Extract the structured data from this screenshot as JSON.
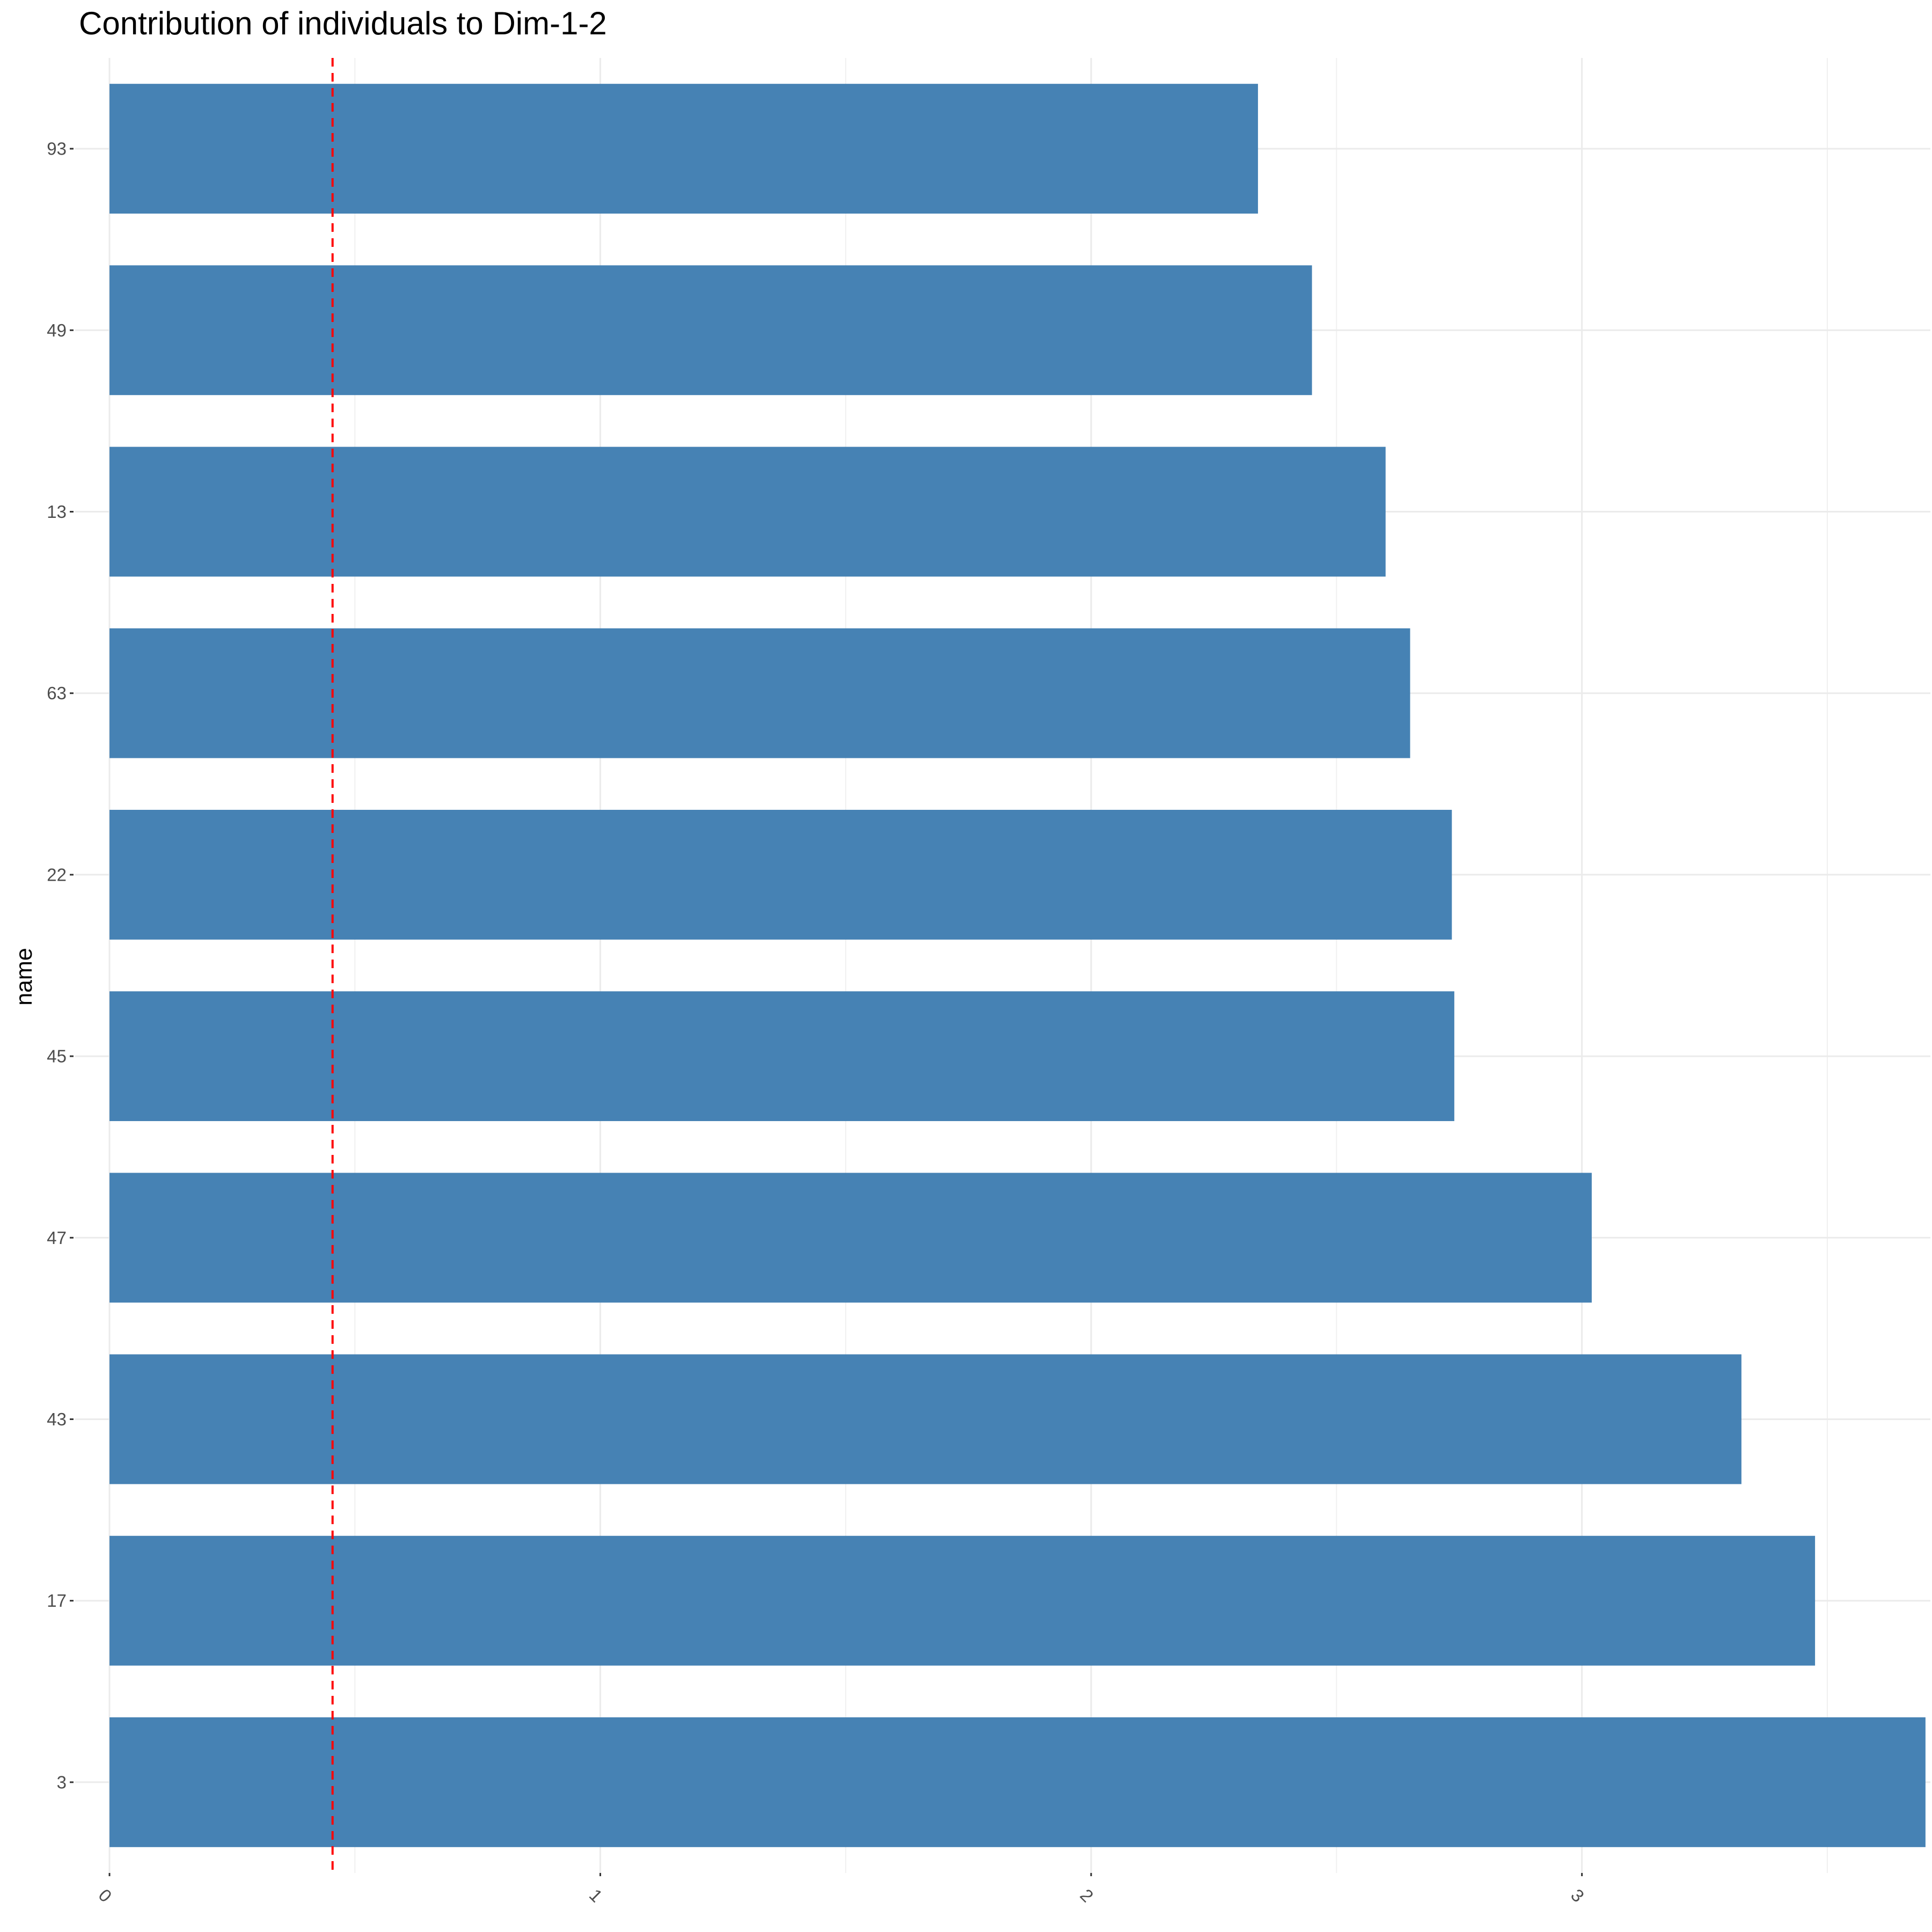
{
  "chart_data": {
    "type": "bar",
    "orientation": "horizontal",
    "title": "Contribution of individuals to Dim-1-2",
    "xlabel": "",
    "ylabel": "name",
    "categories": [
      "93",
      "49",
      "13",
      "63",
      "22",
      "45",
      "47",
      "43",
      "17",
      "3"
    ],
    "values": [
      2.34,
      2.45,
      2.6,
      2.65,
      2.735,
      2.74,
      3.02,
      3.325,
      3.475,
      3.7
    ],
    "xlim": [
      -0.07,
      3.71
    ],
    "x_ticks": [
      0,
      1,
      2,
      3
    ],
    "x_tick_labels": [
      "0",
      "1",
      "2",
      "3"
    ],
    "x_minor_gridlines": [
      0.5,
      1.5,
      2.5,
      3.5
    ],
    "x_tick_label_rotation": "45 degrees",
    "reference_line": {
      "value": 0.4545,
      "style": "dashed",
      "color": "#ff0000"
    },
    "bar_color": "#4682b4",
    "grid": true,
    "legend": "none"
  }
}
